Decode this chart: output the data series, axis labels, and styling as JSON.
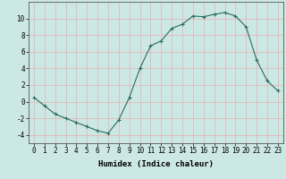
{
  "x": [
    0,
    1,
    2,
    3,
    4,
    5,
    6,
    7,
    8,
    9,
    10,
    11,
    12,
    13,
    14,
    15,
    16,
    17,
    18,
    19,
    20,
    21,
    22,
    23
  ],
  "y": [
    0.5,
    -0.5,
    -1.5,
    -2.0,
    -2.5,
    -3.0,
    -3.5,
    -3.8,
    -2.2,
    0.5,
    4.0,
    6.7,
    7.3,
    8.8,
    9.3,
    10.3,
    10.2,
    10.5,
    10.7,
    10.3,
    9.0,
    5.0,
    2.5,
    1.3
  ],
  "line_color": "#2a6b5e",
  "marker": "+",
  "marker_color": "#2a6b5e",
  "bg_color": "#cce8e4",
  "grid_major_color": "#e8b0b0",
  "grid_minor_color": "#e8d0d0",
  "xlabel": "Humidex (Indice chaleur)",
  "ylabel": "",
  "yticks": [
    -4,
    -2,
    0,
    2,
    4,
    6,
    8,
    10
  ],
  "xticks": [
    0,
    1,
    2,
    3,
    4,
    5,
    6,
    7,
    8,
    9,
    10,
    11,
    12,
    13,
    14,
    15,
    16,
    17,
    18,
    19,
    20,
    21,
    22,
    23
  ],
  "ylim": [
    -5,
    12
  ],
  "xlim": [
    -0.5,
    23.5
  ],
  "label_fontsize": 6.5,
  "tick_fontsize": 5.5
}
